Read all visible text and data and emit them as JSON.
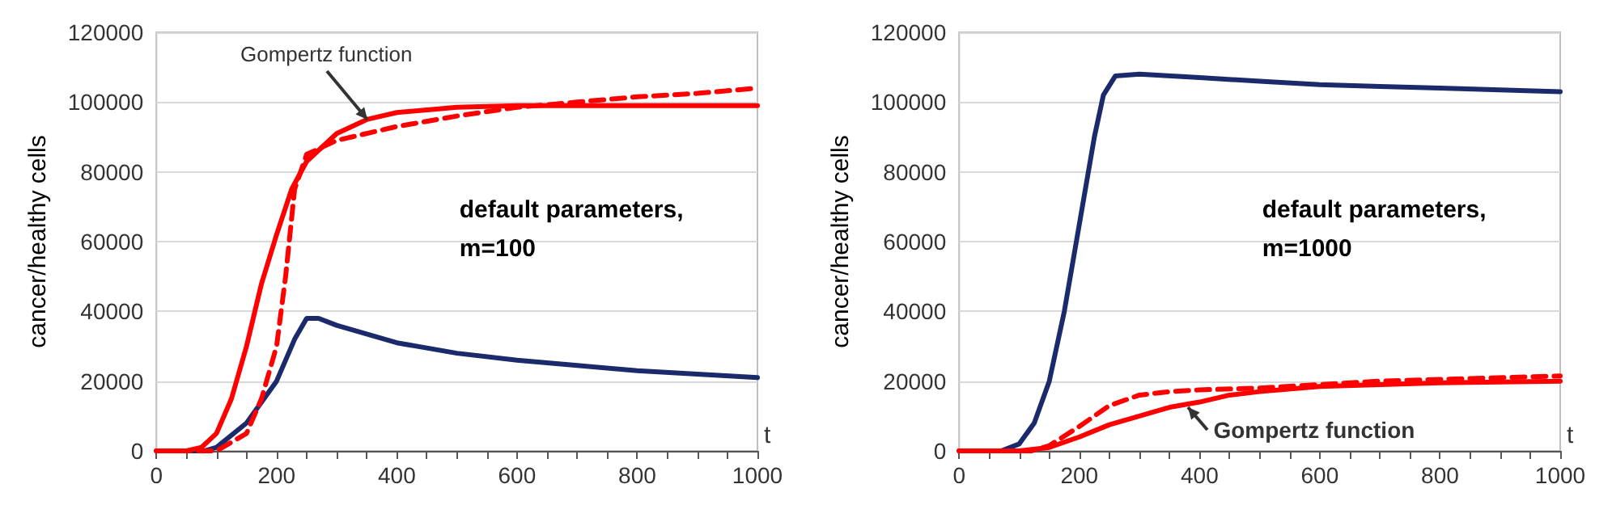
{
  "chart_data": [
    {
      "type": "line",
      "ylabel": "cancer/healthy cells",
      "xlabel": "t",
      "xlim": [
        0,
        1000
      ],
      "xticks": [
        0,
        200,
        400,
        600,
        800,
        1000
      ],
      "ylim": [
        0,
        120000
      ],
      "yticks": [
        0,
        20000,
        40000,
        60000,
        80000,
        100000,
        120000
      ],
      "grid": "y",
      "marker": "none",
      "annotations": [
        {
          "text": "Gompertz function",
          "x": 350,
          "y": 95000
        },
        "default parameters,\nm=100"
      ],
      "series": [
        {
          "color": "#1b2a6b",
          "line_style": "solid",
          "x": [
            0,
            50,
            80,
            100,
            150,
            200,
            230,
            250,
            270,
            300,
            400,
            500,
            600,
            700,
            800,
            900,
            1000
          ],
          "values": [
            0,
            0,
            0,
            1000,
            8000,
            20000,
            32000,
            38000,
            38000,
            36000,
            31000,
            28000,
            26000,
            24500,
            23000,
            22000,
            21000
          ]
        },
        {
          "color": "#ff0000",
          "line_style": "solid",
          "x": [
            0,
            50,
            75,
            100,
            125,
            150,
            175,
            200,
            225,
            250,
            300,
            350,
            400,
            500,
            600,
            1000
          ],
          "values": [
            0,
            0,
            1000,
            5000,
            15000,
            30000,
            48000,
            62000,
            75000,
            83000,
            91000,
            95000,
            97000,
            98500,
            99000,
            99000
          ]
        },
        {
          "color": "#ff0000",
          "line_style": "dashed",
          "x": [
            0,
            100,
            150,
            175,
            200,
            215,
            230,
            250,
            300,
            400,
            500,
            600,
            700,
            800,
            900,
            1000
          ],
          "values": [
            0,
            0,
            5000,
            15000,
            30000,
            50000,
            75000,
            85000,
            89000,
            93000,
            96000,
            98500,
            100000,
            101500,
            102500,
            104000
          ]
        }
      ]
    },
    {
      "type": "line",
      "ylabel": "cancer/healthy cells",
      "xlabel": "t",
      "xlim": [
        0,
        1000
      ],
      "xticks": [
        0,
        200,
        400,
        600,
        800,
        1000
      ],
      "ylim": [
        0,
        120000
      ],
      "yticks": [
        0,
        20000,
        40000,
        60000,
        80000,
        100000,
        120000
      ],
      "grid": "y",
      "marker": "none",
      "annotations": [
        {
          "text": "Gompertz function",
          "x": 380,
          "y": 12500
        },
        "default parameters,\nm=1000"
      ],
      "series": [
        {
          "color": "#1b2a6b",
          "line_style": "solid",
          "x": [
            0,
            70,
            100,
            125,
            150,
            175,
            200,
            225,
            240,
            260,
            300,
            400,
            500,
            600,
            700,
            800,
            900,
            1000
          ],
          "values": [
            0,
            0,
            2000,
            8000,
            20000,
            40000,
            65000,
            90000,
            102000,
            107500,
            108000,
            107000,
            106000,
            105000,
            104500,
            104000,
            103500,
            103000
          ]
        },
        {
          "color": "#ff0000",
          "line_style": "solid",
          "x": [
            0,
            100,
            150,
            200,
            250,
            300,
            350,
            400,
            450,
            500,
            600,
            700,
            800,
            1000
          ],
          "values": [
            0,
            0,
            1000,
            4000,
            7500,
            10000,
            12500,
            14000,
            16000,
            17000,
            18500,
            19000,
            19500,
            20000
          ]
        },
        {
          "color": "#ff0000",
          "line_style": "dashed",
          "x": [
            0,
            120,
            150,
            200,
            250,
            300,
            350,
            400,
            500,
            600,
            700,
            800,
            1000
          ],
          "values": [
            0,
            0,
            1500,
            7000,
            13000,
            16000,
            17000,
            17500,
            18000,
            19000,
            20000,
            20500,
            21500
          ]
        }
      ]
    }
  ]
}
